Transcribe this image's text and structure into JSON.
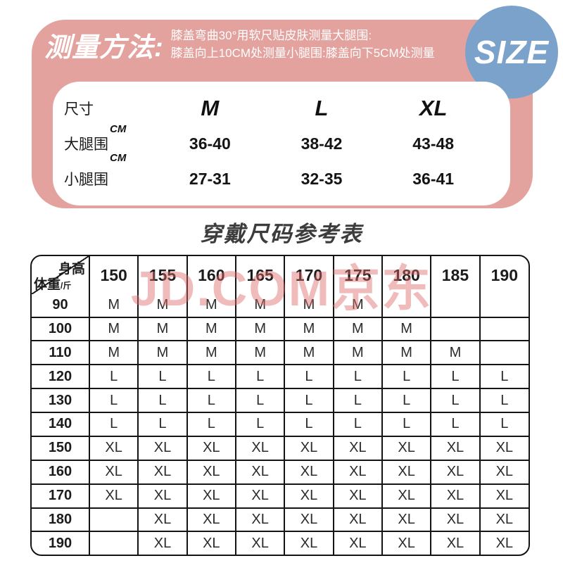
{
  "banner": {
    "title": "测量方法:",
    "line1": "膝盖弯曲30°用软尺贴皮肤测量大腿围:",
    "line2": "膝盖向上10CM处测量小腿围:膝盖向下5CM处测量",
    "size_badge": "SIZE",
    "colors": {
      "pink": "#e3a29d",
      "blue": "#7aa2ca"
    }
  },
  "measure_card": {
    "header": {
      "label": "尺寸",
      "sizes": [
        "M",
        "L",
        "XL"
      ]
    },
    "rows": [
      {
        "label": "大腿围",
        "unit_sup": "CM",
        "unit_sub": "CM",
        "values": [
          "36-40",
          "38-42",
          "43-48"
        ]
      },
      {
        "label": "小腿围",
        "values": [
          "27-31",
          "32-35",
          "36-41"
        ]
      }
    ]
  },
  "section_title": "穿戴尺码参考表",
  "size_table": {
    "corner": {
      "top_label": "身高",
      "bottom_label": "体重",
      "bottom_unit": "/斤"
    },
    "height_headers": [
      "150",
      "155",
      "160",
      "165",
      "170",
      "175",
      "180",
      "185",
      "190"
    ],
    "rows": [
      {
        "weight": "90",
        "sizes": [
          "M",
          "M",
          "M",
          "M",
          "M",
          "M",
          "",
          "",
          ""
        ]
      },
      {
        "weight": "100",
        "sizes": [
          "M",
          "M",
          "M",
          "M",
          "M",
          "M",
          "M",
          "",
          ""
        ]
      },
      {
        "weight": "110",
        "sizes": [
          "M",
          "M",
          "M",
          "M",
          "M",
          "M",
          "M",
          "M",
          ""
        ]
      },
      {
        "weight": "120",
        "sizes": [
          "L",
          "L",
          "L",
          "L",
          "L",
          "L",
          "L",
          "L",
          "L"
        ]
      },
      {
        "weight": "130",
        "sizes": [
          "L",
          "L",
          "L",
          "L",
          "L",
          "L",
          "L",
          "L",
          "L"
        ]
      },
      {
        "weight": "140",
        "sizes": [
          "L",
          "L",
          "L",
          "L",
          "L",
          "L",
          "L",
          "L",
          "L"
        ]
      },
      {
        "weight": "150",
        "sizes": [
          "XL",
          "XL",
          "XL",
          "XL",
          "XL",
          "XL",
          "XL",
          "XL",
          "XL"
        ]
      },
      {
        "weight": "160",
        "sizes": [
          "XL",
          "XL",
          "XL",
          "XL",
          "XL",
          "XL",
          "XL",
          "XL",
          "XL"
        ]
      },
      {
        "weight": "170",
        "sizes": [
          "XL",
          "XL",
          "XL",
          "XL",
          "XL",
          "XL",
          "XL",
          "XL",
          "XL"
        ]
      },
      {
        "weight": "180",
        "sizes": [
          "",
          "XL",
          "XL",
          "XL",
          "XL",
          "XL",
          "XL",
          "XL",
          "XL"
        ]
      },
      {
        "weight": "190",
        "sizes": [
          "",
          "XL",
          "XL",
          "XL",
          "XL",
          "XL",
          "XL",
          "XL",
          "XL"
        ]
      }
    ]
  },
  "watermark": {
    "text": "JD.COM京东",
    "color": "#e06a6a"
  }
}
